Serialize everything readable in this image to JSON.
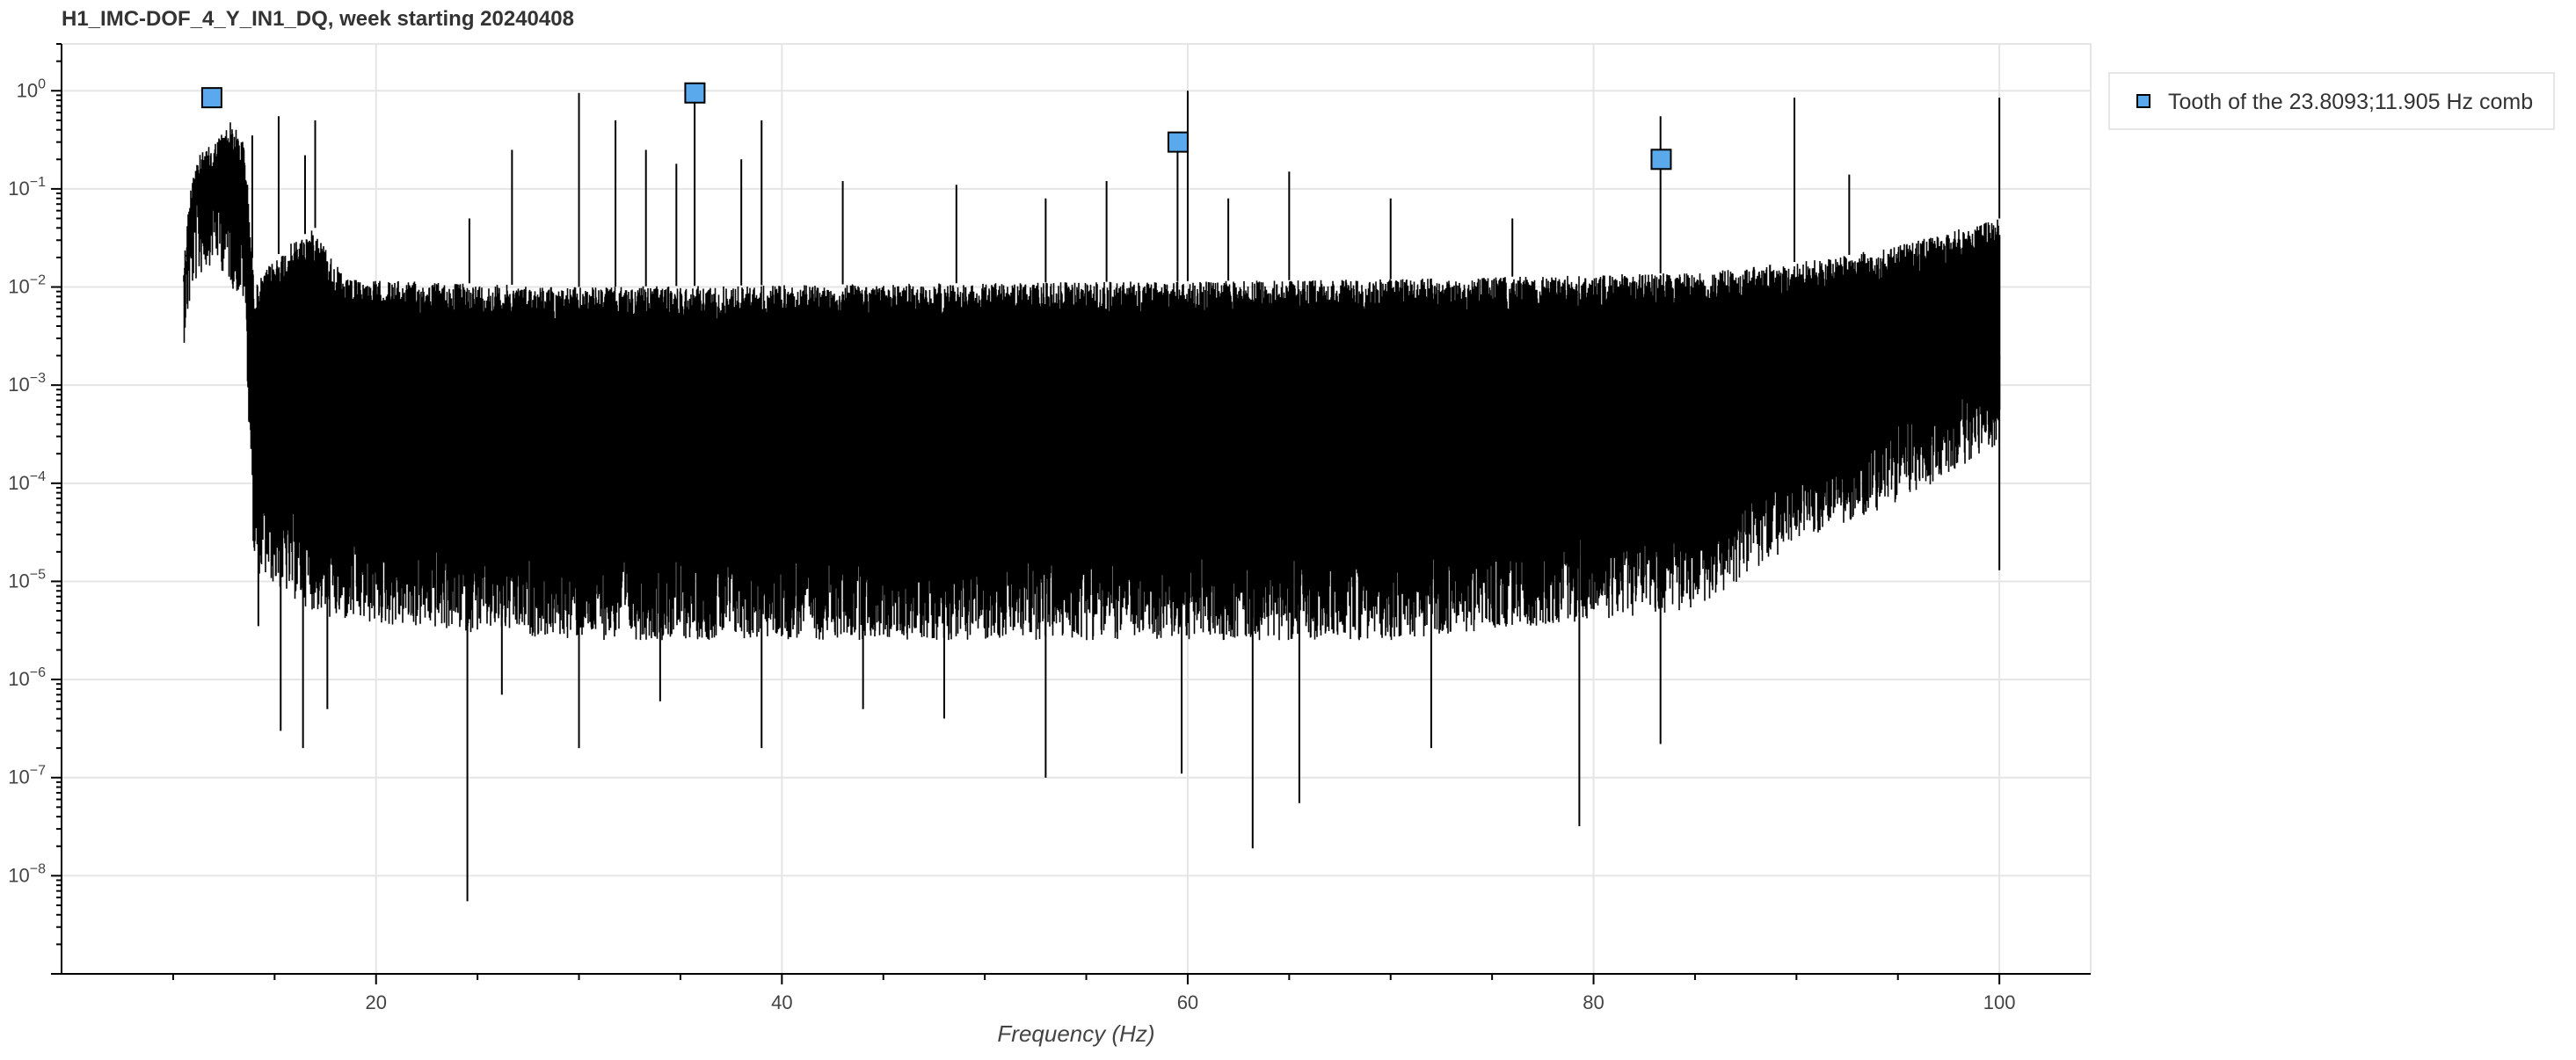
{
  "chart_data": {
    "type": "line",
    "title": "H1_IMC-DOF_4_Y_IN1_DQ, week starting 20240408",
    "xlabel": "Frequency (Hz)",
    "ylabel": "",
    "x_scale": "linear",
    "y_scale": "log",
    "xlim": [
      4.5,
      104.5
    ],
    "ylim": [
      1e-09,
      3
    ],
    "x_ticks": [
      20,
      40,
      60,
      80,
      100
    ],
    "x_tick_labels": [
      "20",
      "40",
      "60",
      "80",
      "100"
    ],
    "y_tick_labels": [
      {
        "base": "10",
        "exp": "0"
      },
      {
        "base": "10",
        "exp": "−1"
      },
      {
        "base": "10",
        "exp": "−2"
      },
      {
        "base": "10",
        "exp": "−3"
      },
      {
        "base": "10",
        "exp": "−4"
      },
      {
        "base": "10",
        "exp": "−5"
      },
      {
        "base": "10",
        "exp": "−6"
      },
      {
        "base": "10",
        "exp": "−7"
      },
      {
        "base": "10",
        "exp": "−8"
      }
    ],
    "y_tick_values": [
      1,
      0.1,
      0.01,
      0.001,
      0.0001,
      1e-05,
      1e-06,
      1e-07,
      1e-08
    ],
    "grid": true,
    "legend_position": "outside-top-right",
    "series": [
      {
        "name": "",
        "kind": "spectrum",
        "color": "#000000",
        "x_range": [
          10.5,
          100
        ],
        "noise_floor_upper": [
          [
            10.5,
            0.02
          ],
          [
            11,
            0.2
          ],
          [
            12,
            0.3
          ],
          [
            12.8,
            0.5
          ],
          [
            13.5,
            0.3
          ],
          [
            14,
            0.01
          ],
          [
            15,
            0.02
          ],
          [
            16,
            0.03
          ],
          [
            17,
            0.04
          ],
          [
            17.8,
            0.02
          ],
          [
            18.5,
            0.012
          ],
          [
            30,
            0.01
          ],
          [
            50,
            0.011
          ],
          [
            70,
            0.012
          ],
          [
            85,
            0.014
          ],
          [
            92,
            0.02
          ],
          [
            96,
            0.03
          ],
          [
            100,
            0.05
          ]
        ],
        "noise_floor_lower": [
          [
            10.5,
            0.02
          ],
          [
            11,
            0.08
          ],
          [
            12,
            0.15
          ],
          [
            13.5,
            0.05
          ],
          [
            14,
            0.0001
          ],
          [
            16,
            5e-05
          ],
          [
            18,
            3e-05
          ],
          [
            30,
            2e-05
          ],
          [
            50,
            2e-05
          ],
          [
            70,
            2e-05
          ],
          [
            85,
            4e-05
          ],
          [
            90,
            0.0002
          ],
          [
            95,
            0.0005
          ],
          [
            100,
            0.002
          ]
        ],
        "spikes_up": [
          [
            13.9,
            0.35
          ],
          [
            15.2,
            0.55
          ],
          [
            16.5,
            0.22
          ],
          [
            17.0,
            0.5
          ],
          [
            24.6,
            0.05
          ],
          [
            26.7,
            0.25
          ],
          [
            30.0,
            0.95
          ],
          [
            31.8,
            0.5
          ],
          [
            33.3,
            0.25
          ],
          [
            34.8,
            0.18
          ],
          [
            35.7,
            0.9
          ],
          [
            38.0,
            0.2
          ],
          [
            39.0,
            0.5
          ],
          [
            43.0,
            0.12
          ],
          [
            48.6,
            0.11
          ],
          [
            53.0,
            0.08
          ],
          [
            56.0,
            0.12
          ],
          [
            59.5,
            0.25
          ],
          [
            60.0,
            1.0
          ],
          [
            62.0,
            0.08
          ],
          [
            65.0,
            0.15
          ],
          [
            70.0,
            0.08
          ],
          [
            76.0,
            0.05
          ],
          [
            83.3,
            0.55
          ],
          [
            89.9,
            0.85
          ],
          [
            92.6,
            0.14
          ],
          [
            100.0,
            0.85
          ]
        ],
        "spikes_down": [
          [
            14.2,
            3.5e-06
          ],
          [
            15.3,
            3e-07
          ],
          [
            16.4,
            2e-07
          ],
          [
            17.6,
            5e-07
          ],
          [
            24.5,
            5.5e-09
          ],
          [
            26.2,
            7e-07
          ],
          [
            30.0,
            2e-07
          ],
          [
            34.0,
            6e-07
          ],
          [
            39.0,
            2e-07
          ],
          [
            44.0,
            5e-07
          ],
          [
            48.0,
            4e-07
          ],
          [
            53.0,
            1e-07
          ],
          [
            59.7,
            1.1e-07
          ],
          [
            63.2,
            1.9e-08
          ],
          [
            65.5,
            5.5e-08
          ],
          [
            72.0,
            2e-07
          ],
          [
            79.3,
            3.2e-08
          ],
          [
            83.3,
            2.2e-07
          ],
          [
            100.0,
            1.3e-05
          ]
        ]
      },
      {
        "name": "Tooth of the 23.8093;11.905 Hz comb",
        "kind": "markers",
        "marker": "square",
        "color": "#5aa9ec",
        "edge_color": "#000000",
        "x": [
          11.905,
          35.714,
          59.523,
          83.333
        ],
        "y": [
          0.85,
          0.95,
          0.3,
          0.2
        ]
      }
    ]
  },
  "legend": {
    "entry_label": "Tooth of the 23.8093;11.905 Hz comb",
    "swatch_color": "#5aa9ec"
  }
}
